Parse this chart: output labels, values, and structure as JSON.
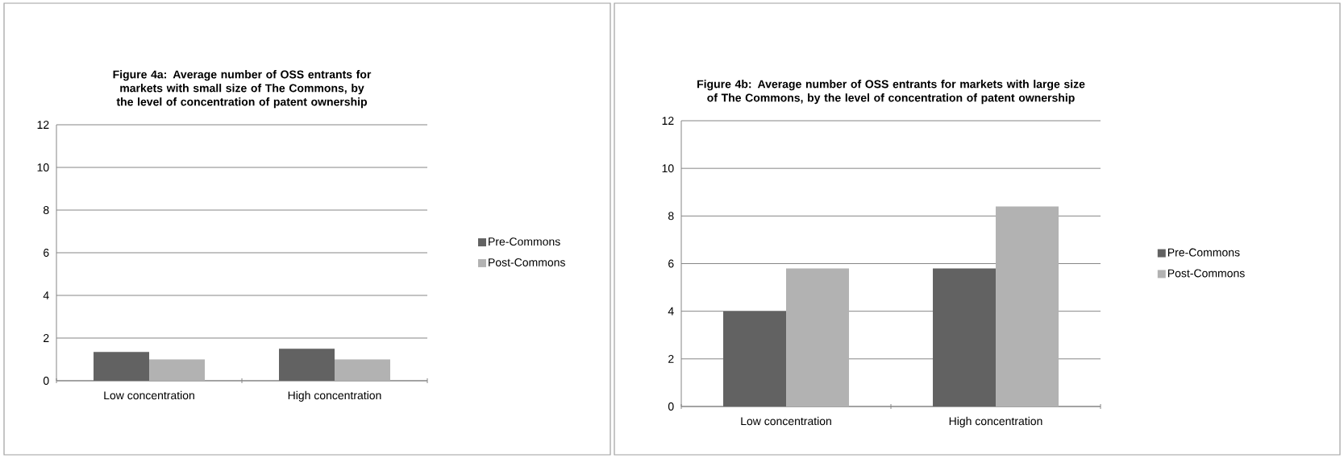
{
  "chart_data": [
    {
      "type": "bar",
      "title": "Figure 4a: Average number of OSS entrants for markets with small size of The Commons, by the level of concentration of patent ownership",
      "categories": [
        "Low concentration",
        "High concentration"
      ],
      "series": [
        {
          "name": "Pre-Commons",
          "color": "#626262",
          "values": [
            1.35,
            1.5
          ]
        },
        {
          "name": "Post-Commons",
          "color": "#b2b2b2",
          "values": [
            1.0,
            1.0
          ]
        }
      ],
      "ylim": [
        0,
        12
      ],
      "yticks": [
        0,
        2,
        4,
        6,
        8,
        10,
        12
      ],
      "grid": "y",
      "legend": "right"
    },
    {
      "type": "bar",
      "title": "Figure 4b: Average number of OSS entrants for markets with large size of The Commons, by the level of concentration of patent ownership",
      "categories": [
        "Low concentration",
        "High concentration"
      ],
      "series": [
        {
          "name": "Pre-Commons",
          "color": "#626262",
          "values": [
            4.0,
            5.8
          ]
        },
        {
          "name": "Post-Commons",
          "color": "#b2b2b2",
          "values": [
            5.8,
            8.4
          ]
        }
      ],
      "ylim": [
        0,
        12
      ],
      "yticks": [
        0,
        2,
        4,
        6,
        8,
        10,
        12
      ],
      "grid": "y",
      "legend": "right"
    }
  ]
}
